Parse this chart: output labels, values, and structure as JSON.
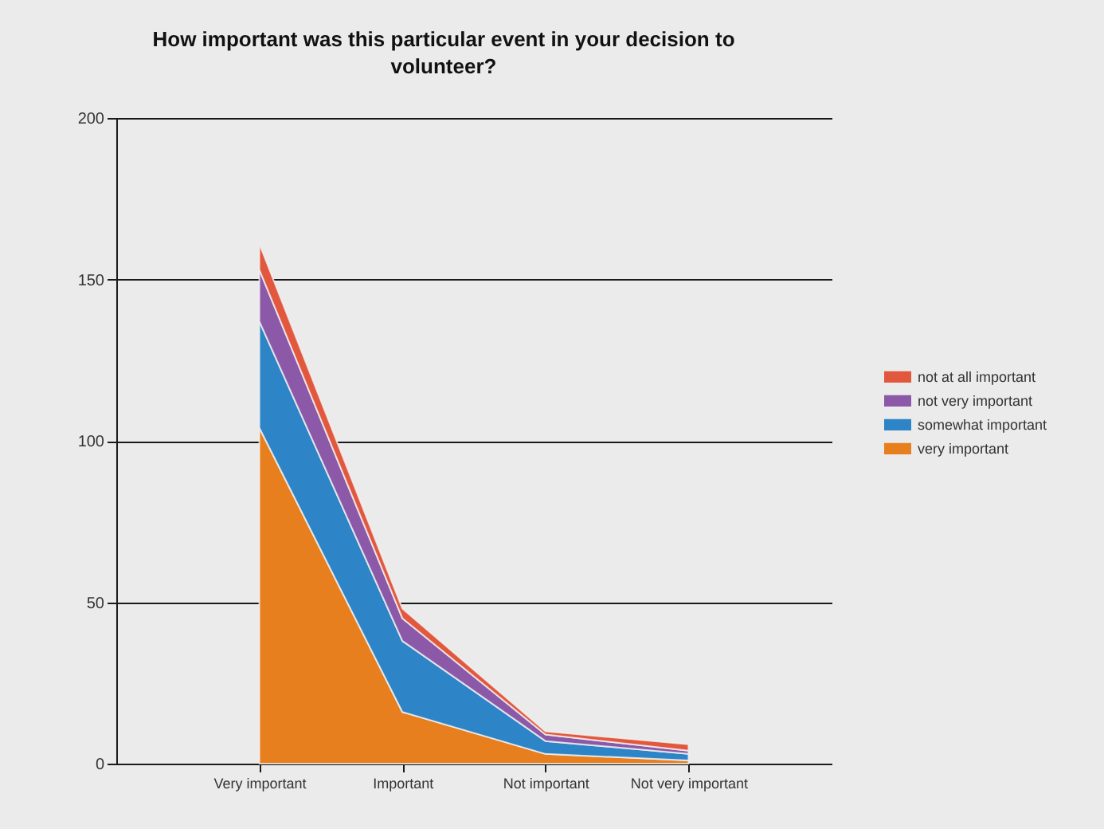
{
  "chart_data": {
    "type": "area",
    "title": "How important was this particular event in your decision to volunteer?",
    "categories": [
      "Very important",
      "Important",
      "Not important",
      "Not very important"
    ],
    "series": [
      {
        "name": "very important",
        "color": "#e87f1e",
        "values": [
          104,
          16,
          3,
          1
        ]
      },
      {
        "name": "somewhat important",
        "color": "#2d84c6",
        "values": [
          33,
          22,
          4,
          2
        ]
      },
      {
        "name": "not very important",
        "color": "#8b59a8",
        "values": [
          16,
          7,
          2,
          1
        ]
      },
      {
        "name": "not at all important",
        "color": "#e2583e",
        "values": [
          8,
          3,
          1,
          2
        ]
      }
    ],
    "stacked": true,
    "ylim": [
      0,
      200
    ],
    "yticks": [
      0,
      50,
      100,
      150,
      200
    ],
    "grid": "y",
    "legend": "right"
  }
}
